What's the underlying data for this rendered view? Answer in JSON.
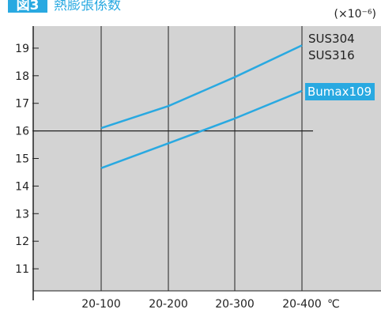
{
  "figure": {
    "label": "図3",
    "title": "熱膨張係数"
  },
  "colors": {
    "accent": "#29a9e1",
    "plot_bg": "#d3d3d3",
    "axis": "#222222",
    "text": "#222222",
    "page_bg": "#ffffff"
  },
  "chart_data": {
    "type": "line",
    "title": "熱膨張係数",
    "unit_label": "(×10⁻⁶)",
    "x_unit": "℃",
    "categories": [
      "20-100",
      "20-200",
      "20-300",
      "20-400"
    ],
    "ylim": [
      10.2,
      19.8
    ],
    "yticks": [
      11,
      12,
      13,
      14,
      15,
      16,
      17,
      18,
      19
    ],
    "reference_line": 16,
    "grid": "vertical at categories",
    "series": [
      {
        "name_lines": [
          "SUS304",
          "SUS316"
        ],
        "values": [
          16.1,
          16.9,
          17.95,
          19.1
        ],
        "label_style": "plain"
      },
      {
        "name_lines": [
          "Bumax109"
        ],
        "values": [
          14.65,
          15.55,
          16.45,
          17.45
        ],
        "label_style": "badge"
      }
    ]
  }
}
